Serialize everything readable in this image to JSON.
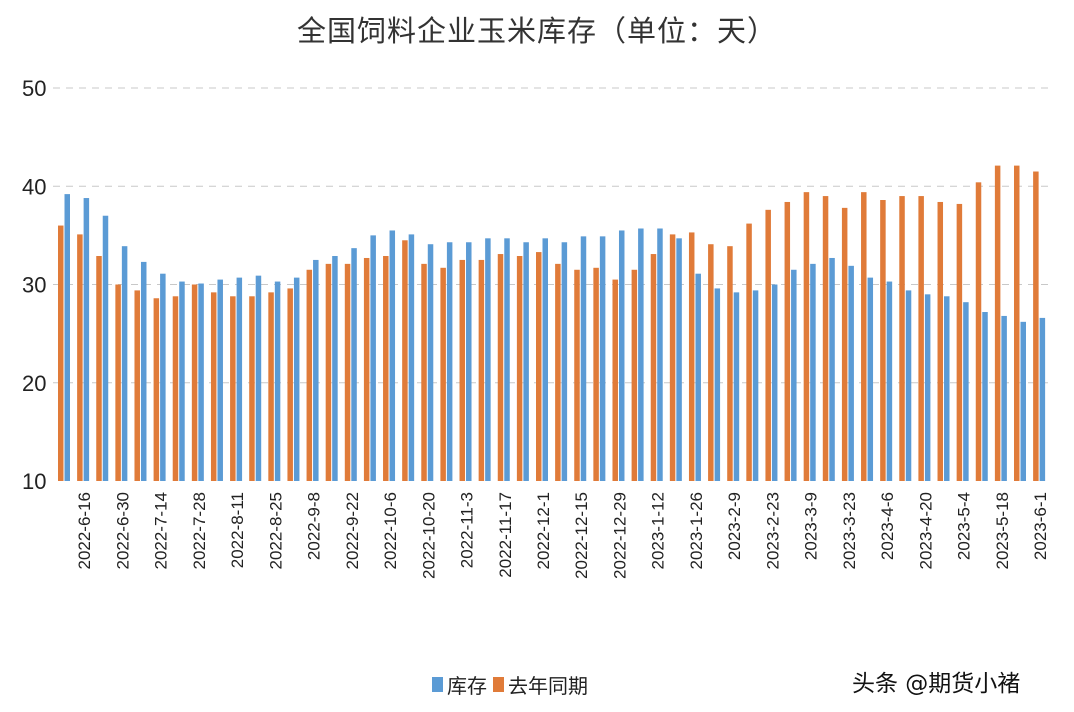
{
  "chart_data": {
    "type": "bar",
    "title": "全国饲料企业玉米库存（单位：天）",
    "xlabel": "",
    "ylabel": "",
    "ylim": [
      10,
      50
    ],
    "yticks": [
      10,
      20,
      30,
      40,
      50
    ],
    "grid": true,
    "legend_position": "bottom",
    "tick_labels": [
      "2022-6-16",
      "2022-6-30",
      "2022-7-14",
      "2022-7-28",
      "2022-8-11",
      "2022-8-25",
      "2022-9-8",
      "2022-9-22",
      "2022-10-6",
      "2022-10-20",
      "2022-11-3",
      "2022-11-17",
      "2022-12-1",
      "2022-12-15",
      "2022-12-29",
      "2023-1-12",
      "2023-1-26",
      "2023-2-9",
      "2023-2-23",
      "2023-3-9",
      "2023-3-23",
      "2023-4-6",
      "2023-4-20",
      "2023-5-4",
      "2023-5-18",
      "2023-6-1"
    ],
    "series": [
      {
        "name": "库存",
        "color": "#5B9BD5",
        "values": [
          39.2,
          38.8,
          37.0,
          33.9,
          32.3,
          31.1,
          30.3,
          30.1,
          30.5,
          30.7,
          30.9,
          30.3,
          30.7,
          32.5,
          32.9,
          33.7,
          35.0,
          35.5,
          35.1,
          34.1,
          34.3,
          34.3,
          34.7,
          34.7,
          34.3,
          34.7,
          34.3,
          34.9,
          34.9,
          35.5,
          35.7,
          35.7,
          34.7,
          31.1,
          29.6,
          29.2,
          29.4,
          30.0,
          31.5,
          32.1,
          32.7,
          31.9,
          30.7,
          30.3,
          29.4,
          29.0,
          28.8,
          28.2,
          27.2,
          26.8,
          26.2,
          26.6
        ]
      },
      {
        "name": "去年同期",
        "color": "#E07B39",
        "values": [
          36.0,
          35.1,
          32.9,
          30.0,
          29.4,
          28.6,
          28.8,
          30.0,
          29.2,
          28.8,
          28.8,
          29.2,
          29.6,
          31.5,
          32.1,
          32.1,
          32.7,
          32.9,
          34.5,
          32.1,
          31.7,
          32.5,
          32.5,
          33.1,
          32.9,
          33.3,
          32.1,
          31.5,
          31.7,
          30.5,
          31.5,
          33.1,
          35.1,
          35.3,
          34.1,
          33.9,
          36.2,
          37.6,
          38.4,
          39.4,
          39.0,
          37.8,
          39.4,
          38.6,
          39.0,
          39.0,
          38.4,
          38.2,
          40.4,
          42.1,
          42.1,
          41.5
        ]
      }
    ]
  },
  "watermark": "头条 @期货小褚"
}
